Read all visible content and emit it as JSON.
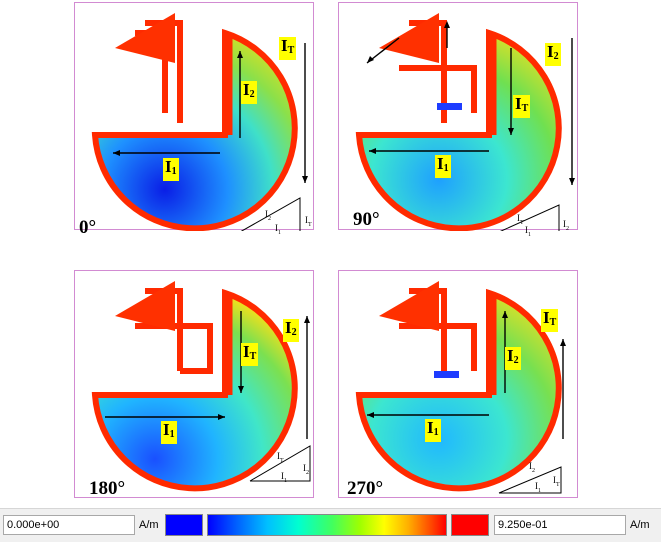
{
  "panels": [
    {
      "angle": "0°",
      "labels": {
        "t": "I",
        "ts": "T",
        "a": "I",
        "as": "2",
        "b": "I",
        "bs": "1"
      },
      "tri": {
        "h": "I",
        "hs": "2",
        "v": "I",
        "vs": "T",
        "b": "I",
        "bs": "1"
      }
    },
    {
      "angle": "90°",
      "labels": {
        "t": "I",
        "ts": "2",
        "a": "I",
        "as": "T",
        "b": "I",
        "bs": "1"
      },
      "tri": {
        "h": "I",
        "hs": "T",
        "v": "I",
        "vs": "2",
        "b": "I",
        "bs": "1"
      }
    },
    {
      "angle": "180°",
      "labels": {
        "t": "I",
        "ts": "2",
        "a": "I",
        "as": "T",
        "b": "I",
        "bs": "1"
      },
      "tri": {
        "h": "I",
        "hs": "T",
        "v": "I",
        "vs": "2",
        "b": "I",
        "bs": "1"
      }
    },
    {
      "angle": "270°",
      "labels": {
        "t": "I",
        "ts": "T",
        "a": "I",
        "as": "2",
        "b": "I",
        "bs": "1"
      },
      "tri": {
        "h": "I",
        "hs": "2",
        "v": "I",
        "vs": "T",
        "b": "I",
        "bs": "1"
      }
    }
  ],
  "legend": {
    "min_value": "0.000e+00",
    "max_value": "9.250e-01",
    "unit_left": "A/m",
    "unit_right": "A/m",
    "min_color": "#0000ff",
    "max_color": "#ff0000"
  }
}
